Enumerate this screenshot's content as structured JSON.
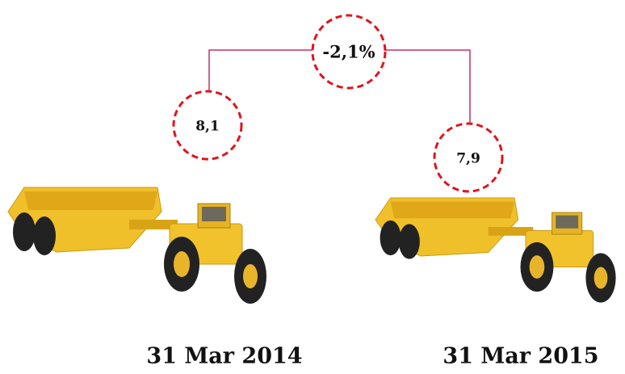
{
  "comparison": {
    "change": "-2,1%",
    "periods": [
      {
        "value": "8,1",
        "date": "31 Mar 2014"
      },
      {
        "value": "7,9",
        "date": "31 Mar 2015"
      }
    ]
  }
}
